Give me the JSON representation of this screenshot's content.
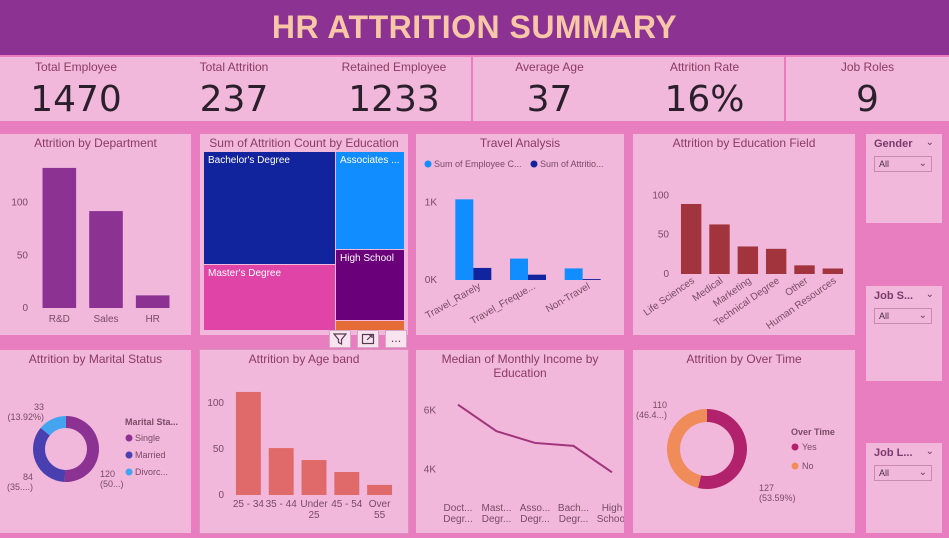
{
  "header": {
    "title": "HR ATTRITION SUMMARY"
  },
  "kpis": [
    {
      "label": "Total Employee",
      "value": "1470"
    },
    {
      "label": "Total Attrition",
      "value": "237"
    },
    {
      "label": "Retained Employee",
      "value": "1233"
    },
    {
      "label": "Average Age",
      "value": "37"
    },
    {
      "label": "Attrition Rate",
      "value": "16%"
    },
    {
      "label": "Job Roles",
      "value": "9"
    }
  ],
  "panels": {
    "department": {
      "title": "Attrition by Department"
    },
    "education_tree": {
      "title": "Sum of Attrition Count by Education"
    },
    "travel": {
      "title": "Travel Analysis"
    },
    "education_field": {
      "title": "Attrition by Education Field"
    },
    "marital": {
      "title": "Attrition by Marital Status"
    },
    "ageband": {
      "title": "Attrition by Age band"
    },
    "income": {
      "title": "Median of Monthly Income by Education"
    },
    "overtime": {
      "title": "Attrition by Over Time"
    }
  },
  "slicers": [
    {
      "title": "Gender",
      "value": "All"
    },
    {
      "title": "Job S...",
      "value": "All"
    },
    {
      "title": "Job L...",
      "value": "All"
    }
  ],
  "visual_buttons": {
    "filter": "filter-icon",
    "focus": "focus-mode-icon",
    "more": "..."
  },
  "chart_data": [
    {
      "type": "bar",
      "id": "department",
      "categories": [
        "R&D",
        "Sales",
        "HR"
      ],
      "values": [
        133,
        92,
        12
      ],
      "ylim": [
        0,
        150
      ],
      "yticks": [
        "0",
        "50",
        "100"
      ],
      "color": "#8b3293"
    },
    {
      "type": "treemap",
      "id": "education_tree",
      "items": [
        {
          "label": "Bachelor's Degree",
          "color": "#12239e"
        },
        {
          "label": "Associates ...",
          "color": "#118dff"
        },
        {
          "label": "Master's Degree",
          "color": "#e044a7"
        },
        {
          "label": "High School",
          "color": "#6b007b"
        },
        {
          "label": "",
          "color": "#e66c37"
        }
      ]
    },
    {
      "type": "bar",
      "id": "travel",
      "legend": [
        "Sum of Employee C...",
        "Sum of Attritio..."
      ],
      "legend_colors": [
        "#118dff",
        "#12239e"
      ],
      "categories": [
        "Travel_Rarely",
        "Travel_Freque...",
        "Non-Travel"
      ],
      "series": [
        {
          "name": "Sum of Employee C...",
          "values": [
            1043,
            277,
            150
          ]
        },
        {
          "name": "Sum of Attritio...",
          "values": [
            156,
            69,
            12
          ]
        }
      ],
      "yticks": [
        "0K",
        "1K"
      ],
      "ylim": [
        0,
        1500
      ]
    },
    {
      "type": "bar",
      "id": "education_field",
      "categories": [
        "Life Sciences",
        "Medical",
        "Marketing",
        "Technical Degree",
        "Other",
        "Human Resources"
      ],
      "values": [
        89,
        63,
        35,
        32,
        11,
        7
      ],
      "ylim": [
        0,
        150
      ],
      "yticks": [
        "0",
        "50",
        "100"
      ],
      "color": "#a1343c"
    },
    {
      "type": "pie",
      "id": "marital",
      "legend_title": "Marital Sta...",
      "labels": [
        "Single",
        "Married",
        "Divorc..."
      ],
      "values": [
        120,
        84,
        33
      ],
      "colors": [
        "#8b3293",
        "#4a3fb0",
        "#44a4f0"
      ],
      "data_labels": [
        {
          "value": "120",
          "pct": "(50...)"
        },
        {
          "value": "84",
          "pct": "(35....)"
        },
        {
          "value": "33",
          "pct": "(13.92%)"
        }
      ]
    },
    {
      "type": "bar",
      "id": "ageband",
      "categories": [
        "25 - 34",
        "35 - 44",
        "Under 25",
        "45 - 54",
        "Over 55"
      ],
      "category_lines": [
        [
          "25 - 34"
        ],
        [
          "35 - 44"
        ],
        [
          "Under",
          "25"
        ],
        [
          "45 - 54"
        ],
        [
          "Over",
          "55"
        ]
      ],
      "values": [
        112,
        51,
        38,
        25,
        11
      ],
      "ylim": [
        0,
        125
      ],
      "yticks": [
        "0",
        "50",
        "100"
      ],
      "color": "#e06a6a"
    },
    {
      "type": "line",
      "id": "income",
      "categories": [
        "Doct... Degr...",
        "Mast... Degr...",
        "Asso... Degr...",
        "Bach... Degr...",
        "High School"
      ],
      "category_lines": [
        [
          "Doct...",
          "Degr..."
        ],
        [
          "Mast...",
          "Degr..."
        ],
        [
          "Asso...",
          "Degr..."
        ],
        [
          "Bach...",
          "Degr..."
        ],
        [
          "High",
          "School"
        ]
      ],
      "values": [
        6200,
        5300,
        4900,
        4800,
        3900
      ],
      "ylim": [
        3300,
        6700
      ],
      "yticks": [
        {
          "v": 4000,
          "t": "4K"
        },
        {
          "v": 6000,
          "t": "6K"
        }
      ],
      "color": "#a1347a"
    },
    {
      "type": "pie",
      "id": "overtime",
      "legend_title": "Over Time",
      "labels": [
        "Yes",
        "No"
      ],
      "values": [
        127,
        110
      ],
      "colors": [
        "#b2216c",
        "#ef8c5a"
      ],
      "data_labels": [
        {
          "value": "127",
          "pct": "(53.59%)"
        },
        {
          "value": "110",
          "pct": "(46.4...)"
        }
      ]
    }
  ]
}
